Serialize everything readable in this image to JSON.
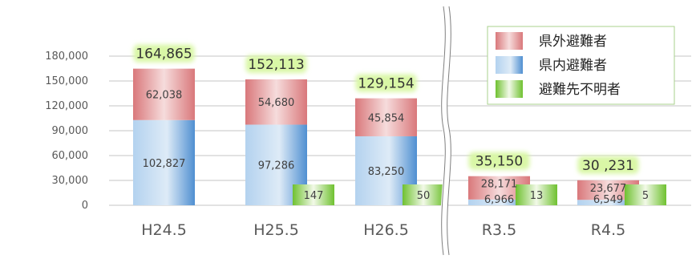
{
  "colors": {
    "outside": "#e88f91",
    "inside": "#6fa8dc",
    "unknown": "#8fd14f",
    "total_glow": "#d9f7a6",
    "grid": "#d9d9d9",
    "text": "#595959"
  },
  "chart_data": {
    "type": "bar",
    "stacked": true,
    "categories": [
      "H24.5",
      "H25.5",
      "H26.5",
      "R3.5",
      "R4.5"
    ],
    "series": [
      {
        "name": "県外避難者",
        "key": "outside",
        "values": [
          62038,
          54680,
          45854,
          28171,
          23677
        ],
        "labels": [
          "62,038",
          "54,680",
          "45,854",
          "28,171",
          "23,677"
        ]
      },
      {
        "name": "県内避難者",
        "key": "inside",
        "values": [
          102827,
          97286,
          83250,
          6966,
          6549
        ],
        "labels": [
          "102,827",
          "97,286",
          "83,250",
          "6,966",
          "6,549"
        ]
      },
      {
        "name": "避難先不明者",
        "key": "unknown",
        "values": [
          null,
          147,
          50,
          13,
          5
        ],
        "labels": [
          "",
          "147",
          "50",
          "13",
          "5"
        ]
      }
    ],
    "totals": [
      "164,865",
      "152,113",
      "129,154",
      "35,150",
      "30 ,231"
    ],
    "yticks": [
      0,
      30000,
      60000,
      90000,
      120000,
      150000,
      180000
    ],
    "ytick_labels": [
      "0",
      "30,000",
      "60,000",
      "90,000",
      "120,000",
      "150,000",
      "180,000"
    ],
    "ylim": [
      0,
      180000
    ],
    "axis_break_after": "H26.5",
    "grid": true,
    "legend_position": "top-right"
  }
}
